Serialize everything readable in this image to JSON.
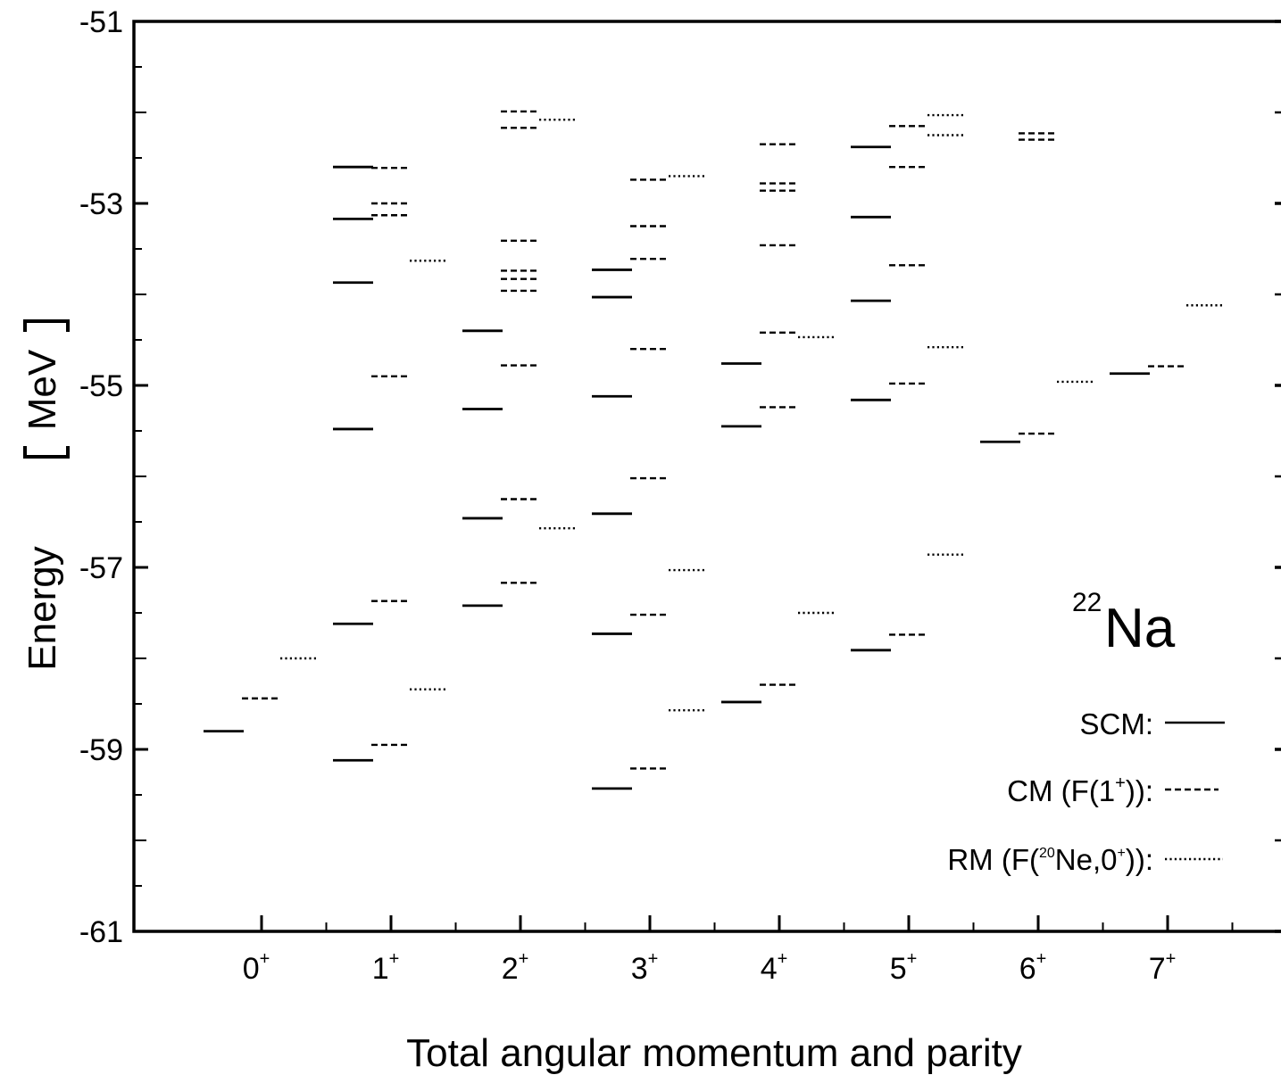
{
  "chart_data": {
    "type": "level-scheme",
    "xlabel": "Total angular momentum and parity",
    "ylabel": "Energy",
    "ylabel_unit": "MeV",
    "ylim": [
      -61,
      -51
    ],
    "y_ticks": [
      -61,
      -59,
      -57,
      -55,
      -53,
      -51
    ],
    "y_tick_labels": [
      "-61",
      "-59",
      "-57",
      "-55",
      "-53",
      "-51"
    ],
    "categories": [
      {
        "label": "0",
        "parity": "+"
      },
      {
        "label": "1",
        "parity": "+"
      },
      {
        "label": "2",
        "parity": "+"
      },
      {
        "label": "3",
        "parity": "+"
      },
      {
        "label": "4",
        "parity": "+"
      },
      {
        "label": "5",
        "parity": "+"
      },
      {
        "label": "6",
        "parity": "+"
      },
      {
        "label": "7",
        "parity": "+"
      }
    ],
    "annotation": {
      "mass": "22",
      "element": "Na"
    },
    "legend": [
      {
        "name": "SCM:",
        "style": "solid"
      },
      {
        "name_prefix": "CM",
        "name_body": "F(1",
        "name_sup": "+",
        "name_suffix": ")):",
        "style": "dashed"
      },
      {
        "name_prefix": "RM",
        "name_body": "F(",
        "name_sup": "20",
        "name_mid": "Ne,0",
        "name_sup2": "+",
        "name_suffix": ")):",
        "style": "dotted"
      }
    ],
    "series": [
      {
        "name": "SCM",
        "style": "solid",
        "levels": [
          [
            -58.8
          ],
          [
            -52.6,
            -53.17,
            -53.87,
            -55.48,
            -57.62,
            -59.12
          ],
          [
            -54.4,
            -55.26,
            -56.46,
            -57.42
          ],
          [
            -53.73,
            -54.03,
            -55.12,
            -56.41,
            -57.73,
            -59.43
          ],
          [
            -54.76,
            -55.45,
            -58.48
          ],
          [
            -52.38,
            -53.15,
            -54.07,
            -55.16,
            -57.91
          ],
          [
            -55.62
          ],
          [
            -54.87
          ]
        ]
      },
      {
        "name": "CM",
        "style": "dashed",
        "levels": [
          [
            -58.44
          ],
          [
            -52.61,
            -53.0,
            -53.13,
            -54.9,
            -57.37,
            -58.95
          ],
          [
            -51.99,
            -52.17,
            -53.41,
            -53.74,
            -53.83,
            -53.96,
            -54.78,
            -56.25,
            -57.17
          ],
          [
            -52.74,
            -53.25,
            -53.61,
            -54.6,
            -56.02,
            -57.52,
            -59.21
          ],
          [
            -52.35,
            -52.78,
            -52.86,
            -53.46,
            -54.42,
            -55.24,
            -58.29
          ],
          [
            -52.15,
            -52.6,
            -53.68,
            -54.98,
            -57.74
          ],
          [
            -52.23,
            -52.3,
            -55.53
          ],
          [
            -54.79
          ]
        ]
      },
      {
        "name": "RM",
        "style": "dotted",
        "levels": [
          [
            -58.0
          ],
          [
            -53.63,
            -58.34
          ],
          [
            -52.08,
            -56.57
          ],
          [
            -52.7,
            -57.03,
            -58.57
          ],
          [
            -54.47,
            -57.5
          ],
          [
            -52.03,
            -52.25,
            -54.58,
            -56.86
          ],
          [
            -54.96
          ],
          [
            -54.12
          ]
        ]
      }
    ]
  }
}
